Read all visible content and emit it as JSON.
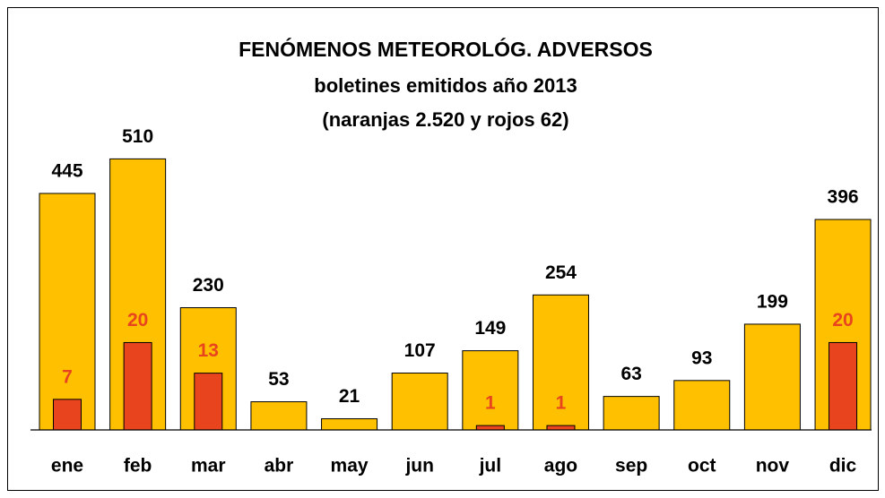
{
  "chart_data": {
    "type": "bar",
    "title": "FENÓMENOS METEOROLÓG. ADVERSOS",
    "subtitle": "boletines emitidos año 2013",
    "annotation": "(naranjas 2.520 y rojos 62)",
    "categories": [
      "ene",
      "feb",
      "mar",
      "abr",
      "may",
      "jun",
      "jul",
      "ago",
      "sep",
      "oct",
      "nov",
      "dic"
    ],
    "series": [
      {
        "color": "#ffc000",
        "values": [
          445,
          510,
          230,
          53,
          21,
          107,
          149,
          254,
          63,
          93,
          199,
          396
        ]
      },
      {
        "color": "#e8441e",
        "axis": "y2",
        "values": [
          7,
          20,
          13,
          null,
          null,
          null,
          1,
          1,
          null,
          null,
          null,
          20
        ]
      }
    ],
    "ylim": [
      0,
      600
    ],
    "y2lim": [
      0,
      73
    ]
  }
}
